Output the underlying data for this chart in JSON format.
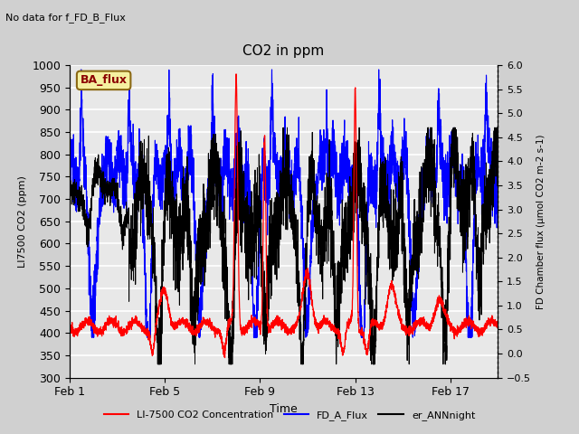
{
  "title": "CO2 in ppm",
  "top_left_text": "No data for f_FD_B_Flux",
  "legend_box_text": "BA_flux",
  "xlabel": "Time",
  "ylabel_left": "LI7500 CO2 (ppm)",
  "ylabel_right": "FD Chamber flux (μmol CO2 m-2 s-1)",
  "ylim_left": [
    300,
    1000
  ],
  "ylim_right": [
    -0.5,
    6.0
  ],
  "yticks_left": [
    300,
    350,
    400,
    450,
    500,
    550,
    600,
    650,
    700,
    750,
    800,
    850,
    900,
    950,
    1000
  ],
  "yticks_right": [
    -0.5,
    0.0,
    0.5,
    1.0,
    1.5,
    2.0,
    2.5,
    3.0,
    3.5,
    4.0,
    4.5,
    5.0,
    5.5,
    6.0
  ],
  "xtick_labels": [
    "Feb 1",
    "Feb 5",
    "Feb 9",
    "Feb 13",
    "Feb 17"
  ],
  "xtick_positions": [
    1,
    5,
    9,
    13,
    17
  ],
  "xrange": [
    1,
    19
  ],
  "fig_bg_color": "#d0d0d0",
  "plot_bg_color": "#e8e8e8",
  "grid_color": "white",
  "line_colors": {
    "red": "#ff0000",
    "blue": "#0000ff",
    "black": "#000000"
  },
  "legend_entries": [
    {
      "label": "LI-7500 CO2 Concentration",
      "color": "#ff0000"
    },
    {
      "label": "FD_A_Flux",
      "color": "#0000ff"
    },
    {
      "label": "er_ANNnight",
      "color": "#000000"
    }
  ]
}
